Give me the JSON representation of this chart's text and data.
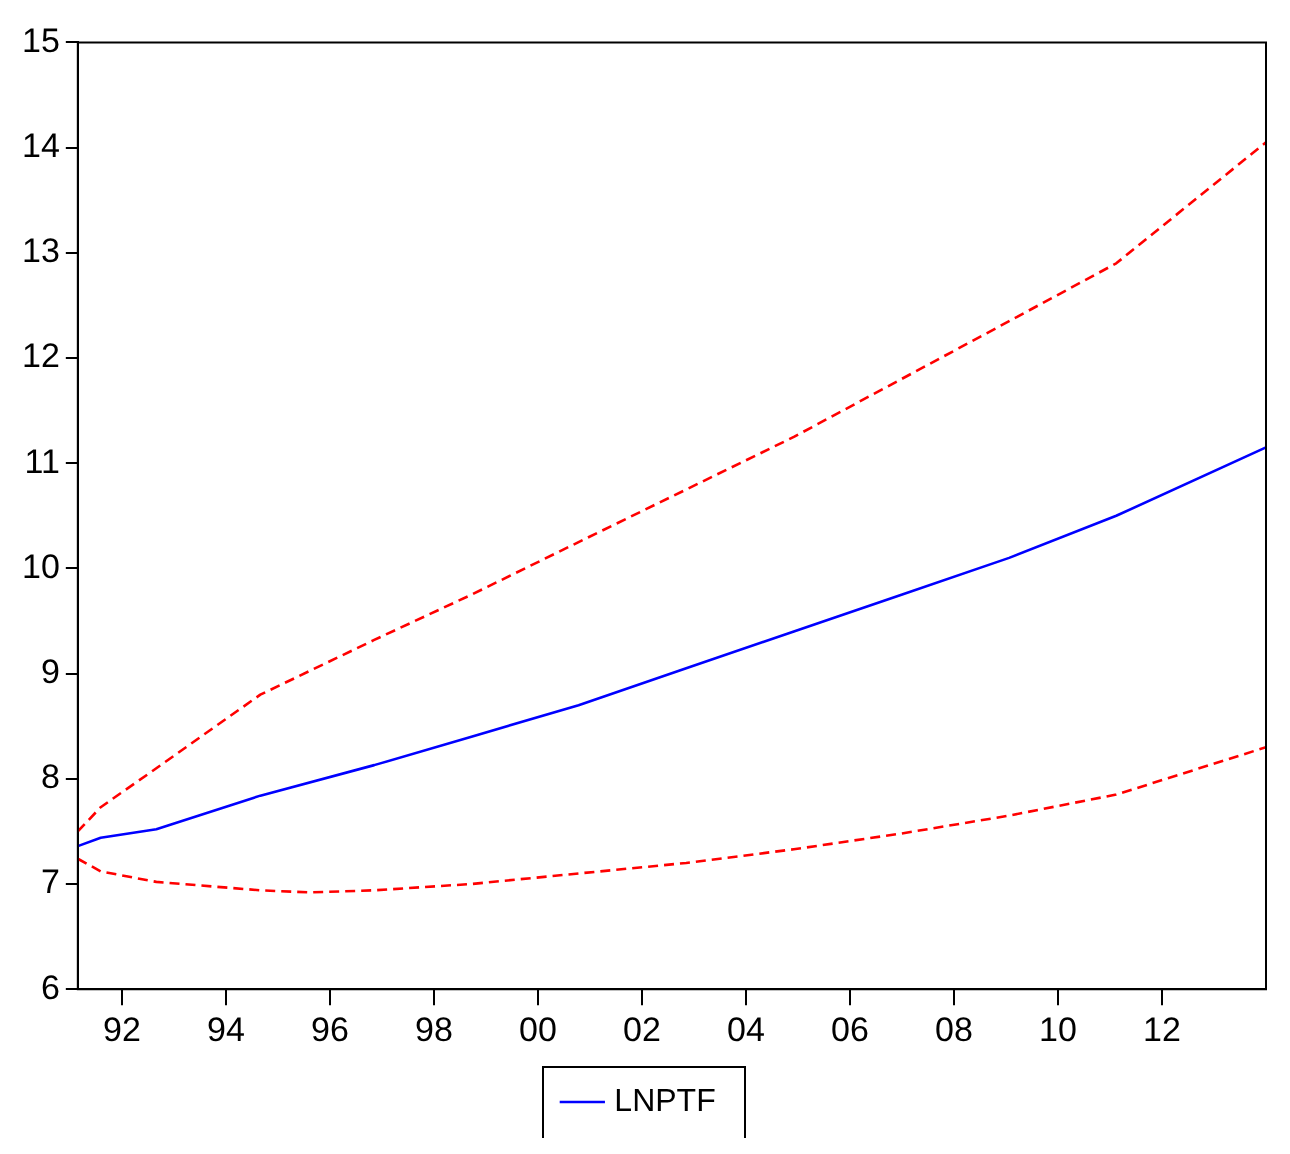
{
  "chart_data": {
    "type": "line",
    "series": [
      {
        "name": "LNPTF",
        "color": "#0000ff",
        "x": [
          1991.15,
          1991.59,
          1992.66,
          1994.66,
          1996.85,
          1998.72,
          2000.78,
          2002.85,
          2004.92,
          2006.99,
          2009.06,
          2011.12,
          2014
        ],
        "values": [
          7.36,
          7.44,
          7.52,
          7.84,
          8.13,
          8.4,
          8.7,
          9.05,
          9.4,
          9.75,
          10.1,
          10.5,
          11.15
        ]
      },
      {
        "color": "#ff0000",
        "line_style": "dashed",
        "x": [
          1991.15,
          1991.59,
          1992.66,
          1994.66,
          1996.85,
          1998.72,
          2000.78,
          2002.85,
          2004.92,
          2006.99,
          2009.06,
          2011.12,
          2014
        ],
        "values": [
          7.5,
          7.73,
          8.1,
          8.8,
          9.32,
          9.75,
          10.25,
          10.75,
          11.25,
          11.8,
          12.35,
          12.9,
          14.05
        ]
      },
      {
        "color": "#ff0000",
        "line_style": "dashed",
        "x": [
          1991.15,
          1991.59,
          1992.66,
          1994.66,
          1995.61,
          1996.85,
          1998.72,
          2000.78,
          2002.85,
          2004.92,
          2006.99,
          2009.06,
          2011.12,
          2014
        ],
        "values": [
          7.24,
          7.12,
          7.02,
          6.94,
          6.92,
          6.94,
          7.0,
          7.1,
          7.2,
          7.33,
          7.48,
          7.65,
          7.85,
          8.3
        ]
      }
    ],
    "xlim": [
      1991.15,
      2014
    ],
    "xticks": [
      {
        "value": 1992,
        "label": "92"
      },
      {
        "value": 1994,
        "label": "94"
      },
      {
        "value": 1996,
        "label": "96"
      },
      {
        "value": 1998,
        "label": "98"
      },
      {
        "value": 2000,
        "label": "00"
      },
      {
        "value": 2002,
        "label": "02"
      },
      {
        "value": 2004,
        "label": "04"
      },
      {
        "value": 2006,
        "label": "06"
      },
      {
        "value": 2008,
        "label": "08"
      },
      {
        "value": 2010,
        "label": "10"
      },
      {
        "value": 2012,
        "label": "12"
      }
    ],
    "ylim": [
      6,
      15
    ],
    "yticks": [
      6,
      7,
      8,
      9,
      10,
      11,
      12,
      13,
      14,
      15
    ],
    "grid": false,
    "legend": "bottom",
    "marker": "none"
  }
}
